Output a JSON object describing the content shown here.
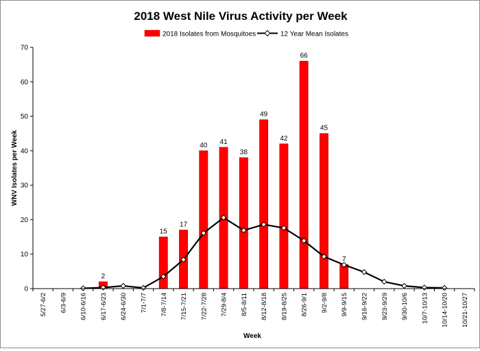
{
  "chart_data": {
    "type": "bar",
    "title": "2018 West Nile Virus Activity per Week",
    "xlabel": "Week",
    "ylabel": "WNV Isolates per Week",
    "ylim": [
      0,
      70
    ],
    "yticks": [
      0,
      10,
      20,
      30,
      40,
      50,
      60,
      70
    ],
    "grid": false,
    "legend_position": "top-center",
    "categories": [
      "5/27-6/2",
      "6/3-6/9",
      "6/10-6/16",
      "6/17-6/23",
      "6/24-6/30",
      "7/1-7/7",
      "7/8-7/14",
      "7/15-7/21",
      "7/22-7/28",
      "7/29-8/4",
      "8/5-8/11",
      "8/12-8/18",
      "8/19-8/25",
      "8/26-9/1",
      "9/2-9/8",
      "9/9-9/15",
      "9/16-9/22",
      "9/23-9/29",
      "9/30-10/6",
      "10/7-10/13",
      "10/14-10/20",
      "10/21-10/27"
    ],
    "series": [
      {
        "name": "2018 Isolates from Mosquitoes",
        "type": "bar",
        "color": "#ff0000",
        "values": [
          null,
          null,
          null,
          2,
          null,
          null,
          15,
          17,
          40,
          41,
          38,
          49,
          42,
          66,
          45,
          7,
          null,
          null,
          null,
          null,
          null,
          null
        ],
        "data_labels": [
          null,
          null,
          null,
          "2",
          null,
          null,
          "15",
          "17",
          "40",
          "41",
          "38",
          "49",
          "42",
          "66",
          "45",
          "7",
          null,
          null,
          null,
          null,
          null,
          null
        ]
      },
      {
        "name": "12 Year Mean Isolates",
        "type": "line",
        "color": "#000000",
        "marker": "diamond",
        "values": [
          null,
          null,
          0.1,
          0.3,
          0.8,
          0.2,
          3.5,
          8.4,
          16.1,
          20.6,
          16.9,
          18.6,
          17.6,
          13.9,
          9.3,
          6.9,
          4.8,
          2.0,
          0.8,
          0.3,
          0.2,
          null
        ]
      }
    ]
  }
}
